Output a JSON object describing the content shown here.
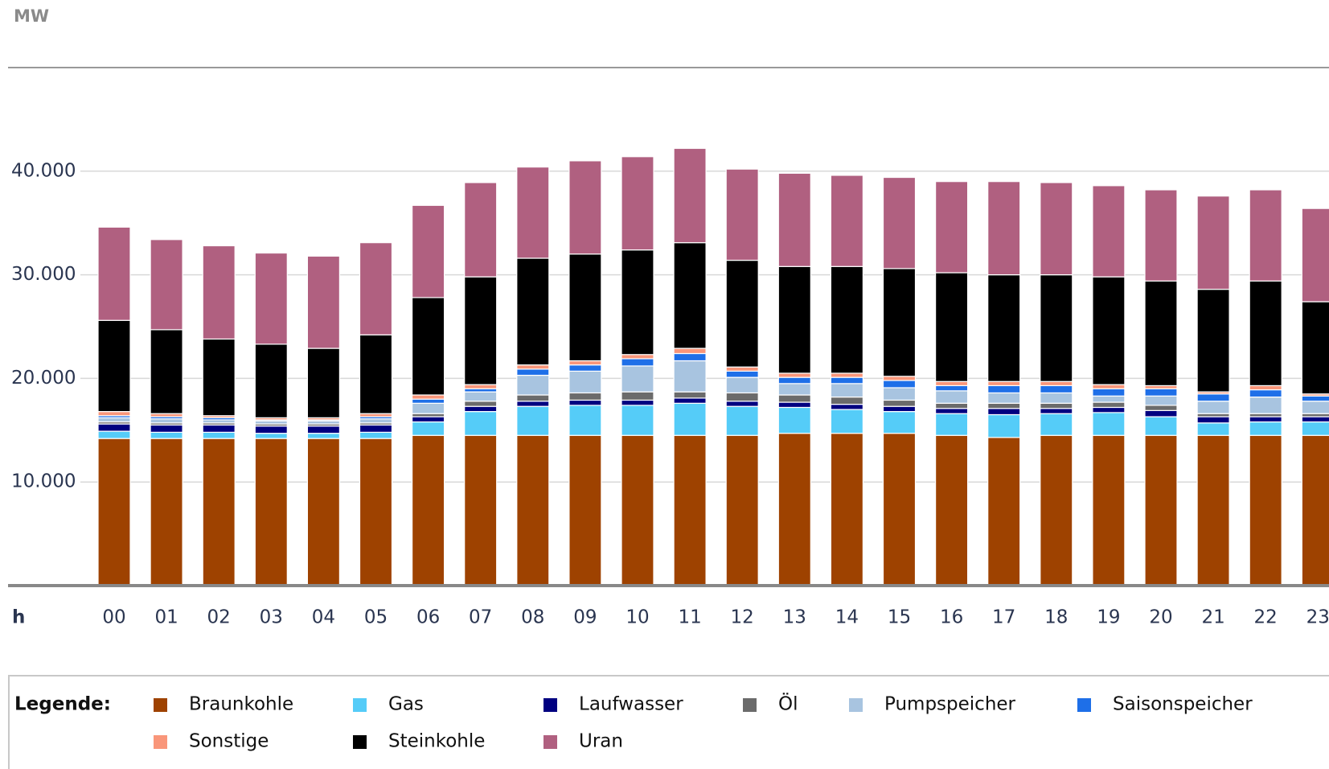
{
  "chart_data": {
    "type": "stacked-bar",
    "y_label": "MW",
    "x_label": "h",
    "legend_title": "Legende:",
    "categories": [
      "00",
      "01",
      "02",
      "03",
      "04",
      "05",
      "06",
      "07",
      "08",
      "09",
      "10",
      "11",
      "12",
      "13",
      "14",
      "15",
      "16",
      "17",
      "18",
      "19",
      "20",
      "21",
      "22",
      "23"
    ],
    "ylim": [
      0,
      50000
    ],
    "yticks": [
      {
        "value": 10000,
        "label": "10.000"
      },
      {
        "value": 20000,
        "label": "20.000"
      },
      {
        "value": 30000,
        "label": "30.000"
      },
      {
        "value": 40000,
        "label": "40.000"
      }
    ],
    "grid": true,
    "series": [
      {
        "name": "Braunkohle",
        "color": "#9e4200",
        "values": [
          14200,
          14200,
          14200,
          14200,
          14200,
          14200,
          14500,
          14500,
          14500,
          14500,
          14500,
          14500,
          14500,
          14700,
          14700,
          14700,
          14500,
          14300,
          14500,
          14500,
          14500,
          14500,
          14500,
          14500
        ]
      },
      {
        "name": "Gas",
        "color": "#55ccf8",
        "values": [
          700,
          600,
          600,
          500,
          500,
          600,
          1300,
          2300,
          2800,
          2900,
          2900,
          3100,
          2800,
          2500,
          2300,
          2100,
          2100,
          2200,
          2100,
          2200,
          1800,
          1200,
          1300,
          1300
        ]
      },
      {
        "name": "Laufwasser",
        "color": "#000080",
        "values": [
          700,
          700,
          700,
          700,
          700,
          700,
          500,
          500,
          500,
          500,
          500,
          500,
          500,
          500,
          500,
          500,
          500,
          600,
          500,
          500,
          600,
          600,
          500,
          500
        ]
      },
      {
        "name": "Öl",
        "color": "#6b6b6b",
        "values": [
          200,
          200,
          200,
          200,
          200,
          200,
          300,
          500,
          600,
          700,
          800,
          600,
          800,
          700,
          700,
          600,
          500,
          500,
          500,
          500,
          500,
          300,
          300,
          300
        ]
      },
      {
        "name": "Pumpspeicher",
        "color": "#a8c4e0",
        "values": [
          400,
          400,
          300,
          300,
          300,
          400,
          1000,
          900,
          1900,
          2100,
          2500,
          3000,
          1500,
          1100,
          1300,
          1200,
          1200,
          1000,
          1000,
          600,
          900,
          1200,
          1600,
          1200
        ]
      },
      {
        "name": "Saisonspeicher",
        "color": "#1e6fe8",
        "values": [
          200,
          200,
          200,
          100,
          100,
          200,
          400,
          300,
          600,
          600,
          700,
          700,
          600,
          600,
          600,
          700,
          500,
          700,
          700,
          700,
          700,
          700,
          700,
          500
        ]
      },
      {
        "name": "Sonstige",
        "color": "#f9967a",
        "values": [
          400,
          300,
          200,
          200,
          200,
          300,
          400,
          400,
          400,
          400,
          400,
          500,
          400,
          400,
          400,
          400,
          400,
          400,
          400,
          400,
          300,
          200,
          400,
          200
        ]
      },
      {
        "name": "Steinkohle",
        "color": "#000000",
        "values": [
          8800,
          8100,
          7400,
          7100,
          6700,
          7600,
          9400,
          10400,
          10300,
          10300,
          10100,
          10200,
          10300,
          10300,
          10300,
          10400,
          10500,
          10300,
          10300,
          10400,
          10100,
          9900,
          10100,
          8900
        ]
      },
      {
        "name": "Uran",
        "color": "#b06080",
        "values": [
          9000,
          8700,
          9000,
          8800,
          8900,
          8900,
          8900,
          9100,
          8800,
          9000,
          9000,
          9100,
          8800,
          9000,
          8800,
          8800,
          8800,
          9000,
          8900,
          8800,
          8800,
          9000,
          8800,
          9000
        ]
      }
    ]
  }
}
